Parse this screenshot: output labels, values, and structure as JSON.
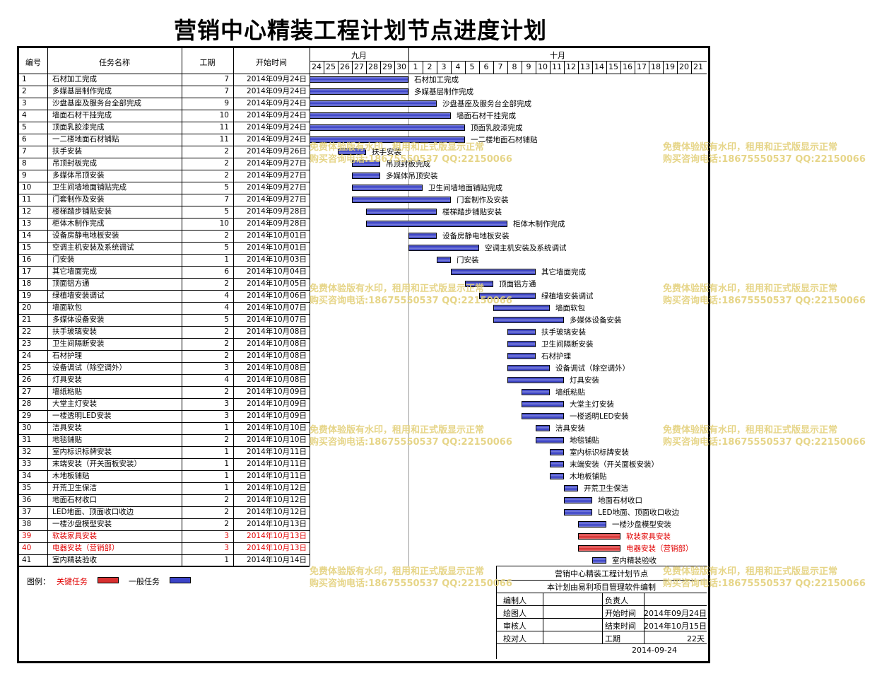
{
  "title": "营销中心精装工程计划节点进度计划",
  "headers": {
    "id": "编号",
    "name": "任务名称",
    "duration": "工期",
    "start": "开始时间"
  },
  "months": [
    {
      "label": "九月"
    },
    {
      "label": "十月"
    }
  ],
  "days": [
    "24",
    "25",
    "26",
    "27",
    "28",
    "29",
    "30",
    "1",
    "2",
    "3",
    "4",
    "5",
    "6",
    "7",
    "8",
    "9",
    "10",
    "11",
    "12",
    "13",
    "14",
    "15",
    "16",
    "17",
    "18",
    "19",
    "20",
    "21"
  ],
  "colors": {
    "normal": "#3c44c8",
    "critical": "#d83030",
    "critical_text": "#e00000",
    "watermark": "#e4d17c"
  },
  "chart_data": {
    "type": "gantt",
    "title": "营销中心精装工程计划节点进度计划",
    "timeline_start": "2014-09-24",
    "tasks": [
      {
        "id": "1",
        "name": "石材加工完成",
        "duration": 7,
        "start": "2014年09月24日",
        "critical": false
      },
      {
        "id": "2",
        "name": "多媒基层制作完成",
        "duration": 7,
        "start": "2014年09月24日",
        "critical": false
      },
      {
        "id": "3",
        "name": "沙盘基座及服务台全部完成",
        "duration": 9,
        "start": "2014年09月24日",
        "critical": false
      },
      {
        "id": "4",
        "name": "墙面石材干挂完成",
        "duration": 10,
        "start": "2014年09月24日",
        "critical": false
      },
      {
        "id": "5",
        "name": "顶面乳胶漆完成",
        "duration": 11,
        "start": "2014年09月24日",
        "critical": false
      },
      {
        "id": "6",
        "name": "一二楼地面石材铺贴",
        "duration": 11,
        "start": "2014年09月24日",
        "critical": false
      },
      {
        "id": "7",
        "name": "扶手安装",
        "duration": 2,
        "start": "2014年09月26日",
        "critical": false
      },
      {
        "id": "8",
        "name": "吊顶封板完成",
        "duration": 2,
        "start": "2014年09月27日",
        "critical": false
      },
      {
        "id": "9",
        "name": "多媒体吊顶安装",
        "duration": 2,
        "start": "2014年09月27日",
        "critical": false
      },
      {
        "id": "10",
        "name": "卫生间墙地面铺贴完成",
        "duration": 5,
        "start": "2014年09月27日",
        "critical": false
      },
      {
        "id": "11",
        "name": "门套制作及安装",
        "duration": 7,
        "start": "2014年09月27日",
        "critical": false
      },
      {
        "id": "12",
        "name": "楼梯踏步铺贴安装",
        "duration": 5,
        "start": "2014年09月28日",
        "critical": false
      },
      {
        "id": "13",
        "name": "柜体木制作完成",
        "duration": 10,
        "start": "2014年09月28日",
        "critical": false
      },
      {
        "id": "14",
        "name": "设备房静电地板安装",
        "duration": 2,
        "start": "2014年10月01日",
        "critical": false
      },
      {
        "id": "15",
        "name": "空调主机安装及系统调试",
        "duration": 5,
        "start": "2014年10月01日",
        "critical": false
      },
      {
        "id": "16",
        "name": "门安装",
        "duration": 1,
        "start": "2014年10月03日",
        "critical": false
      },
      {
        "id": "17",
        "name": "其它墙面完成",
        "duration": 6,
        "start": "2014年10月04日",
        "critical": false
      },
      {
        "id": "18",
        "name": "顶面铝方通",
        "duration": 2,
        "start": "2014年10月05日",
        "critical": false
      },
      {
        "id": "19",
        "name": "绿植墙安装调试",
        "duration": 4,
        "start": "2014年10月06日",
        "critical": false
      },
      {
        "id": "20",
        "name": "墙面软包",
        "duration": 4,
        "start": "2014年10月07日",
        "critical": false
      },
      {
        "id": "21",
        "name": "多媒体设备安装",
        "duration": 5,
        "start": "2014年10月07日",
        "critical": false
      },
      {
        "id": "22",
        "name": "扶手玻璃安装",
        "duration": 2,
        "start": "2014年10月08日",
        "critical": false
      },
      {
        "id": "23",
        "name": "卫生间隔断安装",
        "duration": 2,
        "start": "2014年10月08日",
        "critical": false
      },
      {
        "id": "24",
        "name": "石材护理",
        "duration": 2,
        "start": "2014年10月08日",
        "critical": false
      },
      {
        "id": "25",
        "name": "设备调试（除空调外）",
        "duration": 3,
        "start": "2014年10月08日",
        "critical": false
      },
      {
        "id": "26",
        "name": "灯具安装",
        "duration": 4,
        "start": "2014年10月08日",
        "critical": false
      },
      {
        "id": "27",
        "name": "墙纸粘贴",
        "duration": 2,
        "start": "2014年10月09日",
        "critical": false
      },
      {
        "id": "28",
        "name": "大堂主灯安装",
        "duration": 3,
        "start": "2014年10月09日",
        "critical": false
      },
      {
        "id": "29",
        "name": "一楼透明LED安装",
        "duration": 3,
        "start": "2014年10月09日",
        "critical": false
      },
      {
        "id": "30",
        "name": "洁具安装",
        "duration": 1,
        "start": "2014年10月10日",
        "critical": false
      },
      {
        "id": "31",
        "name": "地毯铺贴",
        "duration": 2,
        "start": "2014年10月10日",
        "critical": false
      },
      {
        "id": "32",
        "name": "室内标识标牌安装",
        "duration": 1,
        "start": "2014年10月11日",
        "critical": false
      },
      {
        "id": "33",
        "name": "末端安装（开关面板安装）",
        "duration": 1,
        "start": "2014年10月11日",
        "critical": false
      },
      {
        "id": "34",
        "name": "木地板铺贴",
        "duration": 1,
        "start": "2014年10月11日",
        "critical": false
      },
      {
        "id": "35",
        "name": "开荒卫生保洁",
        "duration": 1,
        "start": "2014年10月12日",
        "critical": false
      },
      {
        "id": "36",
        "name": "地面石材收口",
        "duration": 2,
        "start": "2014年10月12日",
        "critical": false
      },
      {
        "id": "37",
        "name": "LED地面、顶面收口收边",
        "duration": 2,
        "start": "2014年10月12日",
        "critical": false
      },
      {
        "id": "38",
        "name": "一楼沙盘模型安装",
        "duration": 2,
        "start": "2014年10月13日",
        "critical": false
      },
      {
        "id": "39",
        "name": "软装家具安装",
        "duration": 3,
        "start": "2014年10月13日",
        "critical": true
      },
      {
        "id": "40",
        "name": "电器安装（营销部）",
        "duration": 3,
        "start": "2014年10月13日",
        "critical": true
      },
      {
        "id": "41",
        "name": "室内精装验收",
        "duration": 1,
        "start": "2014年10月14日",
        "critical": false
      }
    ]
  },
  "legend": {
    "label": "图例：",
    "critical": "关键任务",
    "normal": "一般任务"
  },
  "title_block": {
    "project": "营销中心精装工程计划节点",
    "software": "本计划由易利项目管理软件编制",
    "rows": [
      {
        "l1": "编制人",
        "v1": "",
        "l2": "负责人",
        "v2": ""
      },
      {
        "l1": "绘图人",
        "v1": "",
        "l2": "开始时间",
        "v2": "2014年09月24日"
      },
      {
        "l1": "审核人",
        "v1": "",
        "l2": "结束时间",
        "v2": "2014年10月15日"
      },
      {
        "l1": "校对人",
        "v1": "",
        "l2": "工期",
        "v2": "22天"
      }
    ],
    "date": "2014-09-24"
  },
  "watermark": {
    "line1": "免费体验版有水印，租用和正式版显示正常",
    "line2": "购买咨询电话:18675550537 QQ:22150066"
  }
}
